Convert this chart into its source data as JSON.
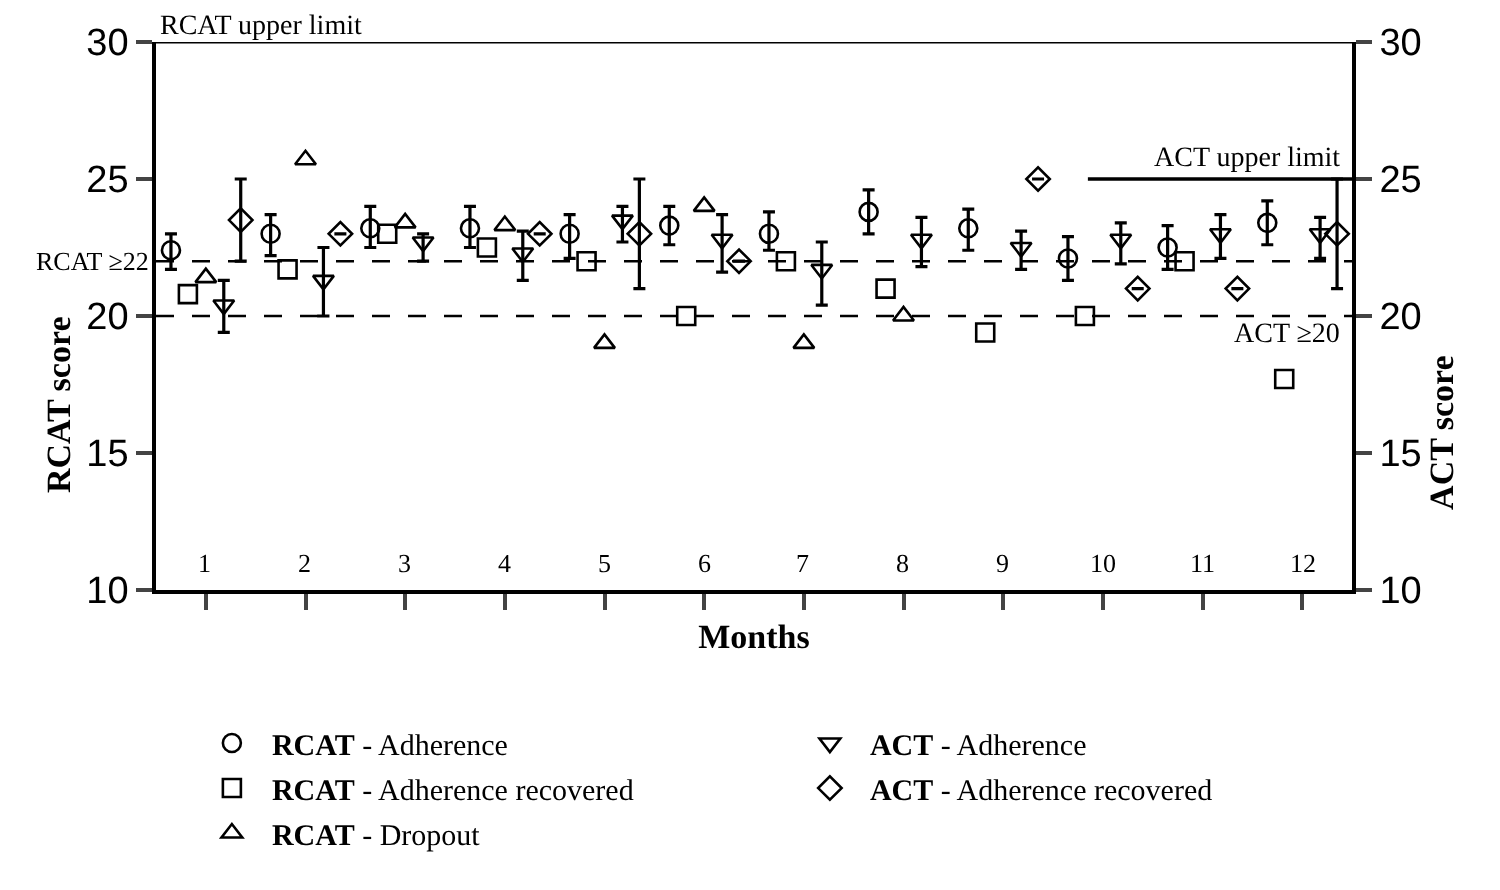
{
  "chart_data": {
    "type": "scatter",
    "xlabel": "Months",
    "ylabel": "RCAT score",
    "y2label": "ACT score",
    "xlim": [
      0.5,
      12.5
    ],
    "xticks": [
      1,
      2,
      3,
      4,
      5,
      6,
      7,
      8,
      9,
      10,
      11,
      12
    ],
    "ylim": [
      10,
      30
    ],
    "yticks": [
      10,
      15,
      20,
      25,
      30
    ],
    "y2lim": [
      10,
      30
    ],
    "y2ticks": [
      10,
      15,
      20,
      25,
      30
    ],
    "legend": "bottom",
    "series": [
      {
        "name": "RCAT - Adherence",
        "color": "#000000",
        "marker": "circle",
        "x": [
          0.65,
          1.65,
          2.65,
          3.65,
          4.65,
          5.65,
          6.65,
          7.65,
          8.65,
          9.65,
          10.65,
          11.65
        ],
        "values": [
          22.4,
          23.0,
          23.2,
          23.2,
          23.0,
          23.3,
          23.0,
          23.8,
          23.2,
          22.1,
          22.5,
          23.4
        ],
        "errors": [
          [
            21.7,
            23.0
          ],
          [
            22.2,
            23.7
          ],
          [
            22.5,
            24.0
          ],
          [
            22.5,
            24.0
          ],
          [
            22.1,
            23.7
          ],
          [
            22.6,
            24.0
          ],
          [
            22.4,
            23.8
          ],
          [
            23.0,
            24.6
          ],
          [
            22.4,
            23.9
          ],
          [
            21.3,
            22.9
          ],
          [
            21.7,
            23.3
          ],
          [
            22.6,
            24.2
          ]
        ]
      },
      {
        "name": "ACT - Adherence",
        "color": "#000000",
        "marker": "triangle-down",
        "axis": "y2",
        "x": [
          1.18,
          2.18,
          3.18,
          4.18,
          5.18,
          6.18,
          7.18,
          8.18,
          9.18,
          10.18,
          11.18,
          12.18
        ],
        "values": [
          20.4,
          21.3,
          22.7,
          22.3,
          23.5,
          22.8,
          21.7,
          22.8,
          22.5,
          22.8,
          23.0,
          23.0
        ],
        "errors": [
          [
            19.4,
            21.3
          ],
          [
            20.0,
            22.5
          ],
          [
            22.0,
            23.0
          ],
          [
            21.3,
            23.1
          ],
          [
            22.7,
            24.0
          ],
          [
            21.6,
            23.7
          ],
          [
            20.4,
            22.7
          ],
          [
            21.8,
            23.6
          ],
          [
            21.7,
            23.1
          ],
          [
            21.9,
            23.4
          ],
          [
            22.1,
            23.7
          ],
          [
            22.1,
            23.6
          ]
        ]
      },
      {
        "name": "RCAT - Adherence recovered",
        "color": "#000000",
        "marker": "square",
        "x": [
          0.82,
          1.82,
          2.82,
          3.82,
          4.82,
          5.82,
          6.82,
          7.82,
          8.82,
          9.82,
          10.82,
          11.82
        ],
        "values": [
          20.8,
          21.7,
          23.0,
          22.5,
          22.0,
          20.0,
          22.0,
          21.0,
          19.4,
          20.0,
          22.0,
          17.7
        ]
      },
      {
        "name": "ACT - Adherence recovered",
        "color": "#000000",
        "marker": "diamond",
        "axis": "y2",
        "x": [
          1.35,
          2.35,
          3.35,
          4.35,
          5.35,
          6.35,
          7.35,
          8.35,
          9.35,
          10.35,
          11.35,
          12.35
        ],
        "values": [
          23.5,
          23.0,
          null,
          23.0,
          23.0,
          22.0,
          null,
          null,
          25.0,
          21.0,
          21.0,
          23.0
        ],
        "errors": [
          [
            22.0,
            25.0
          ],
          null,
          null,
          null,
          [
            21.0,
            25.0
          ],
          null,
          null,
          null,
          null,
          null,
          null,
          [
            21.0,
            25.0
          ]
        ]
      },
      {
        "name": "RCAT - Dropout",
        "color": "#000000",
        "marker": "triangle",
        "x": [
          1,
          2,
          3,
          4,
          5,
          6,
          7,
          8
        ],
        "values": [
          21.4,
          25.7,
          23.4,
          23.3,
          19.0,
          24.0,
          19.0,
          20.0
        ]
      },
      {
        "name": "ACT upper limit",
        "type": "line",
        "color": "#000000",
        "marker": "none",
        "line_style": "solid",
        "axis": "y2",
        "x": [
          9.85,
          12.5
        ],
        "values": [
          25,
          25
        ]
      }
    ],
    "ref_lines": [
      {
        "axis": "y",
        "value": 30,
        "label": "RCAT upper limit",
        "color": "#000000",
        "line_style": "solid"
      },
      {
        "axis": "y",
        "value": 22,
        "label": "RCAT ≥22",
        "color": "#000000",
        "line_style": "dashed"
      },
      {
        "axis": "y2",
        "value": 20,
        "label": "ACT ≥20",
        "color": "#000000",
        "line_style": "dashed"
      }
    ]
  }
}
